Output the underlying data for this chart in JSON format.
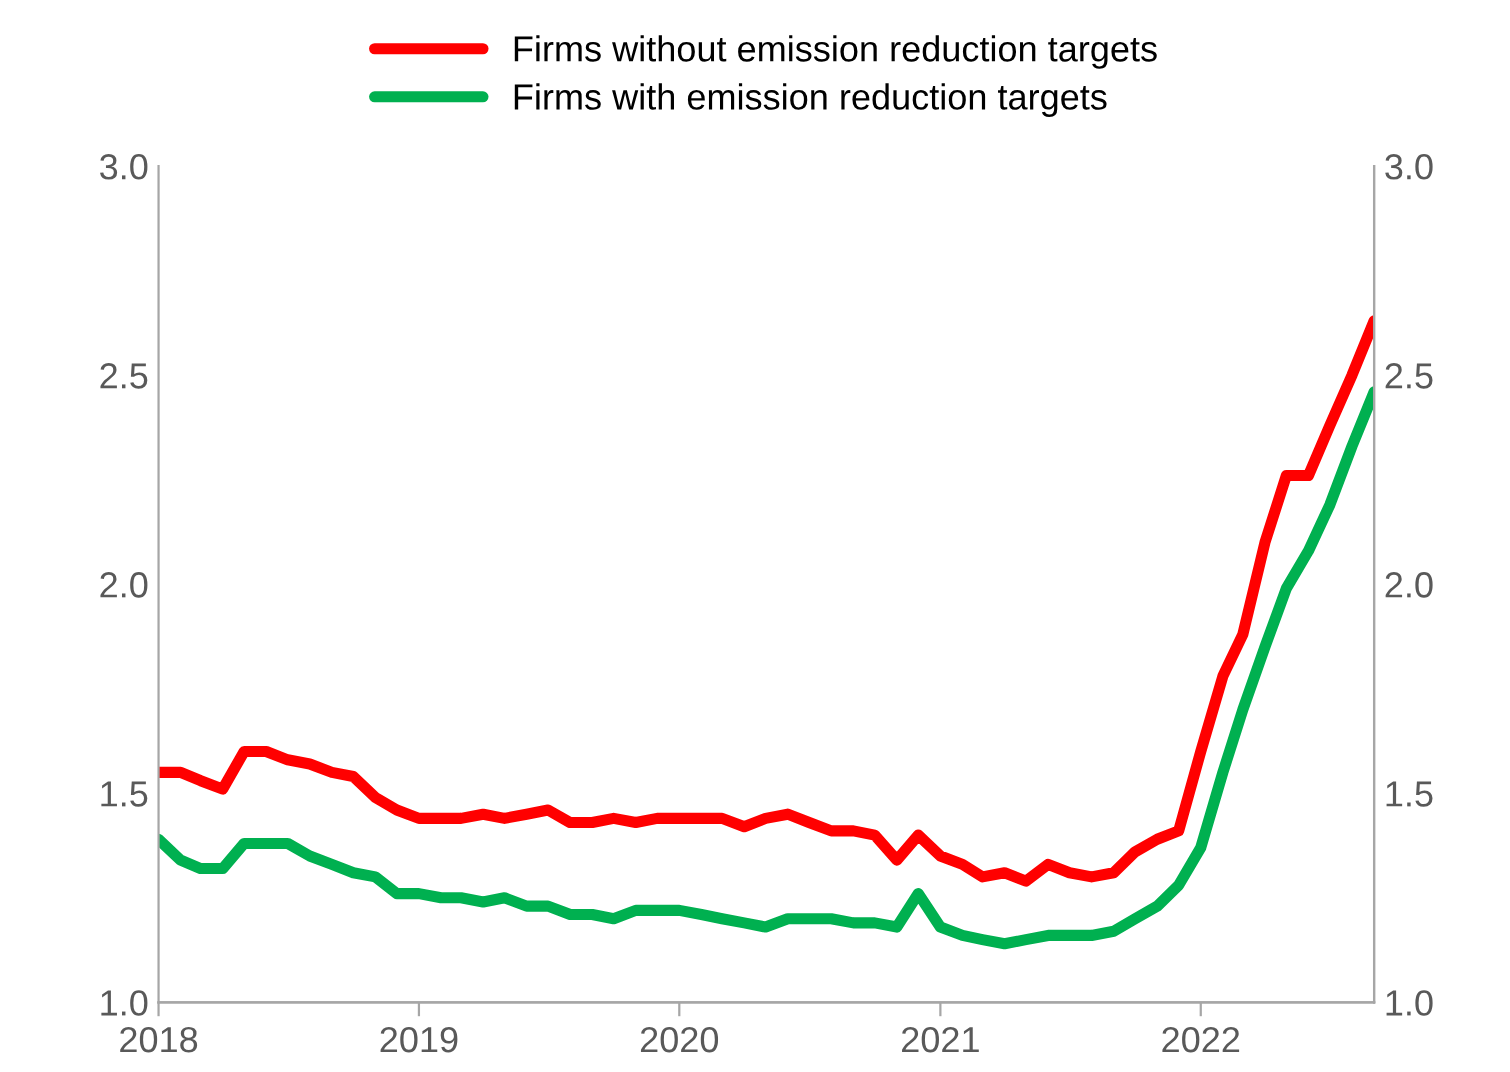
{
  "chart_data": {
    "type": "line",
    "x": [
      "2018-01",
      "2018-02",
      "2018-03",
      "2018-04",
      "2018-05",
      "2018-06",
      "2018-07",
      "2018-08",
      "2018-09",
      "2018-10",
      "2018-11",
      "2018-12",
      "2019-01",
      "2019-02",
      "2019-03",
      "2019-04",
      "2019-05",
      "2019-06",
      "2019-07",
      "2019-08",
      "2019-09",
      "2019-10",
      "2019-11",
      "2019-12",
      "2020-01",
      "2020-02",
      "2020-03",
      "2020-04",
      "2020-05",
      "2020-06",
      "2020-07",
      "2020-08",
      "2020-09",
      "2020-10",
      "2020-11",
      "2020-12",
      "2021-01",
      "2021-02",
      "2021-03",
      "2021-04",
      "2021-05",
      "2021-06",
      "2021-07",
      "2021-08",
      "2021-09",
      "2021-10",
      "2021-11",
      "2021-12",
      "2022-01",
      "2022-02",
      "2022-03",
      "2022-04",
      "2022-05",
      "2022-06",
      "2022-07",
      "2022-08",
      "2022-09"
    ],
    "series": [
      {
        "name": "Firms without emission reduction targets",
        "color": "#ff0000",
        "values": [
          1.55,
          1.55,
          1.53,
          1.51,
          1.6,
          1.6,
          1.58,
          1.57,
          1.55,
          1.54,
          1.49,
          1.46,
          1.44,
          1.44,
          1.44,
          1.45,
          1.44,
          1.45,
          1.46,
          1.43,
          1.43,
          1.44,
          1.43,
          1.44,
          1.44,
          1.44,
          1.44,
          1.42,
          1.44,
          1.45,
          1.43,
          1.41,
          1.41,
          1.4,
          1.34,
          1.4,
          1.35,
          1.33,
          1.3,
          1.31,
          1.29,
          1.33,
          1.31,
          1.3,
          1.31,
          1.36,
          1.39,
          1.41,
          1.6,
          1.78,
          1.88,
          2.1,
          2.26,
          2.26,
          2.38,
          2.5,
          2.63
        ]
      },
      {
        "name": "Firms with emission reduction targets",
        "color": "#00b050",
        "values": [
          1.39,
          1.34,
          1.32,
          1.32,
          1.38,
          1.38,
          1.38,
          1.35,
          1.33,
          1.31,
          1.3,
          1.26,
          1.26,
          1.25,
          1.25,
          1.24,
          1.25,
          1.23,
          1.23,
          1.21,
          1.21,
          1.2,
          1.22,
          1.22,
          1.22,
          1.21,
          1.2,
          1.19,
          1.18,
          1.2,
          1.2,
          1.2,
          1.19,
          1.19,
          1.18,
          1.26,
          1.18,
          1.16,
          1.15,
          1.14,
          1.15,
          1.16,
          1.16,
          1.16,
          1.17,
          1.2,
          1.23,
          1.28,
          1.37,
          1.55,
          1.7,
          1.85,
          1.99,
          2.08,
          2.19,
          2.33,
          2.46
        ]
      }
    ],
    "xlim": [
      "2018-01",
      "2022-09"
    ],
    "xticks": [
      "2018",
      "2019",
      "2020",
      "2021",
      "2022"
    ],
    "ylim": [
      1.0,
      3.0
    ],
    "yticks": [
      {
        "value": 1.0,
        "label": "1.0"
      },
      {
        "value": 1.5,
        "label": "1.5"
      },
      {
        "value": 2.0,
        "label": "2.0"
      },
      {
        "value": 2.5,
        "label": "2.5"
      },
      {
        "value": 3.0,
        "label": "3.0"
      }
    ],
    "y2lim": [
      1.0,
      3.0
    ],
    "y2ticks": [
      {
        "value": 1.0,
        "label": "1.0"
      },
      {
        "value": 1.5,
        "label": "1.5"
      },
      {
        "value": 2.0,
        "label": "2.0"
      },
      {
        "value": 2.5,
        "label": "2.5"
      },
      {
        "value": 3.0,
        "label": "3.0"
      }
    ],
    "legend": "top",
    "grid": false,
    "marker": "none",
    "line_style": "solid"
  }
}
